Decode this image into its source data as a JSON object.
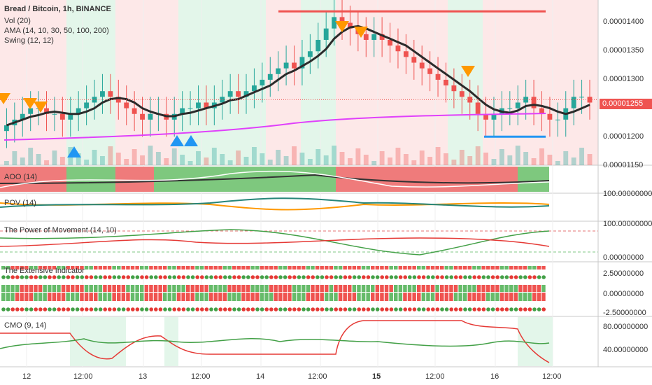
{
  "legend": {
    "symbol": "Bread / Bitcoin, 1h, BINANCE",
    "indicators": [
      "Vol (20)",
      "AMA (14, 10, 30, 50, 100, 200)",
      "Swing (12, 12)"
    ]
  },
  "panes": {
    "aoo": "AOO (14)",
    "pov": "POV (14)",
    "pom": "The Power of Movement (14, 10)",
    "ext": "The Extensive Indicator",
    "cmo": "CMO (9, 14)"
  },
  "price_axis": [
    "0.00001400",
    "0.00001350",
    "0.00001300",
    "0.00001200",
    "0.00001150"
  ],
  "last_price": "0.00001255",
  "pom_axis": [
    "100.00000000",
    "0.00000000"
  ],
  "ext_axis": [
    "2.50000000",
    "0.00000000",
    "-2.50000000"
  ],
  "cmo_axis": [
    "80.00000000",
    "40.00000000"
  ],
  "time_axis": [
    {
      "label": "12",
      "bold": false
    },
    {
      "label": "12:00",
      "bold": false
    },
    {
      "label": "13",
      "bold": false
    },
    {
      "label": "12:00",
      "bold": false
    },
    {
      "label": "14",
      "bold": false
    },
    {
      "label": "12:00",
      "bold": false
    },
    {
      "label": "15",
      "bold": true
    },
    {
      "label": "12:00",
      "bold": false
    },
    {
      "label": "16",
      "bold": false
    },
    {
      "label": "12:00",
      "bold": false
    }
  ],
  "colors": {
    "up": "#26a69a",
    "down": "#ef5350",
    "ama": "#2b2b2b",
    "ma_long": "#e040fb",
    "swing_high": "#ef5350",
    "swing_low": "#2196f3",
    "triangle_down": "#ff9800",
    "triangle_up": "#2196f3",
    "bg_green": "#e3f6ea",
    "bg_red": "#fde8e8"
  },
  "chart_data": {
    "type": "candlestick",
    "title": "Bread / Bitcoin, 1h, BINANCE",
    "y_range": [
      1.14e-05,
      1.43e-05
    ],
    "last_price": 1.255e-05,
    "swing_high": 1.41e-05,
    "swing_low": 1.19e-05,
    "closes": [
      1.21e-05,
      1.22e-05,
      1.23e-05,
      1.24e-05,
      1.24e-05,
      1.23e-05,
      1.23e-05,
      1.22e-05,
      1.23e-05,
      1.24e-05,
      1.25e-05,
      1.26e-05,
      1.27e-05,
      1.26e-05,
      1.25e-05,
      1.24e-05,
      1.23e-05,
      1.22e-05,
      1.23e-05,
      1.23e-05,
      1.22e-05,
      1.23e-05,
      1.24e-05,
      1.24e-05,
      1.25e-05,
      1.24e-05,
      1.25e-05,
      1.26e-05,
      1.27e-05,
      1.26e-05,
      1.27e-05,
      1.28e-05,
      1.29e-05,
      1.3e-05,
      1.31e-05,
      1.32e-05,
      1.31e-05,
      1.33e-05,
      1.34e-05,
      1.36e-05,
      1.38e-05,
      1.4e-05,
      1.39e-05,
      1.38e-05,
      1.37e-05,
      1.36e-05,
      1.37e-05,
      1.36e-05,
      1.35e-05,
      1.34e-05,
      1.33e-05,
      1.32e-05,
      1.31e-05,
      1.3e-05,
      1.29e-05,
      1.28e-05,
      1.27e-05,
      1.26e-05,
      1.25e-05,
      1.23e-05,
      1.22e-05,
      1.23e-05,
      1.24e-05,
      1.24e-05,
      1.25e-05,
      1.26e-05,
      1.24e-05,
      1.23e-05,
      1.22e-05,
      1.22e-05,
      1.24e-05,
      1.26e-05,
      1.26e-05,
      1.25e-05
    ]
  }
}
